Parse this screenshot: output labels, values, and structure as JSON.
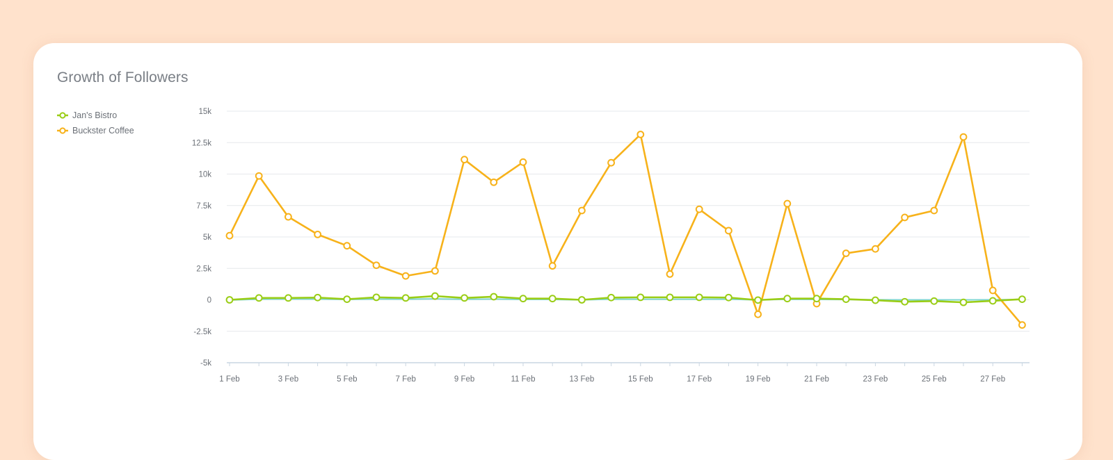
{
  "chart_title": "Growth of Followers",
  "colors": {
    "background": "#ffe2cc",
    "card": "#ffffff",
    "grid": "#e6e8ec",
    "axis": "#c9d6e2",
    "zero_line": "#7fd6d0"
  },
  "chart_data": {
    "type": "line",
    "title": "Growth of Followers",
    "xlabel": "",
    "ylabel": "",
    "x": [
      "1 Feb",
      "2 Feb",
      "3 Feb",
      "4 Feb",
      "5 Feb",
      "6 Feb",
      "7 Feb",
      "8 Feb",
      "9 Feb",
      "10 Feb",
      "11 Feb",
      "12 Feb",
      "13 Feb",
      "14 Feb",
      "15 Feb",
      "16 Feb",
      "17 Feb",
      "18 Feb",
      "19 Feb",
      "20 Feb",
      "21 Feb",
      "22 Feb",
      "23 Feb",
      "24 Feb",
      "25 Feb",
      "26 Feb",
      "27 Feb",
      "28 Feb"
    ],
    "x_tick_labels": [
      "1 Feb",
      "3 Feb",
      "5 Feb",
      "7 Feb",
      "9 Feb",
      "11 Feb",
      "13 Feb",
      "15 Feb",
      "17 Feb",
      "19 Feb",
      "21 Feb",
      "23 Feb",
      "25 Feb",
      "27 Feb"
    ],
    "ylim": [
      -5000,
      15000
    ],
    "y_ticks": [
      -5000,
      -2500,
      0,
      2500,
      5000,
      7500,
      10000,
      12500,
      15000
    ],
    "y_tick_labels": [
      "-5k",
      "-2.5k",
      "0",
      "2.5k",
      "5k",
      "7.5k",
      "10k",
      "12.5k",
      "15k"
    ],
    "grid": true,
    "legend_position": "left",
    "series": [
      {
        "name": "Jan's Bistro",
        "color": "#9acd16",
        "values": [
          0,
          150,
          150,
          180,
          50,
          200,
          150,
          300,
          150,
          250,
          100,
          100,
          0,
          180,
          200,
          200,
          200,
          180,
          -20,
          100,
          100,
          50,
          -30,
          -150,
          -100,
          -200,
          -80,
          50
        ]
      },
      {
        "name": "Buckster Coffee",
        "color": "#f7b21a",
        "values": [
          5100,
          9850,
          6600,
          5200,
          4300,
          2750,
          1900,
          2300,
          11150,
          9350,
          10950,
          2700,
          7100,
          10900,
          13150,
          2050,
          7200,
          5500,
          -1150,
          7650,
          -300,
          3700,
          4050,
          6550,
          7100,
          12950,
          750,
          -2000
        ]
      }
    ],
    "reference_line": {
      "color": "#7fd6d0",
      "values": [
        -20,
        50,
        60,
        60,
        30,
        60,
        50,
        80,
        40,
        60,
        30,
        30,
        -10,
        50,
        50,
        50,
        50,
        50,
        -10,
        40,
        30,
        20,
        10,
        0,
        0,
        0,
        10,
        30
      ]
    }
  }
}
